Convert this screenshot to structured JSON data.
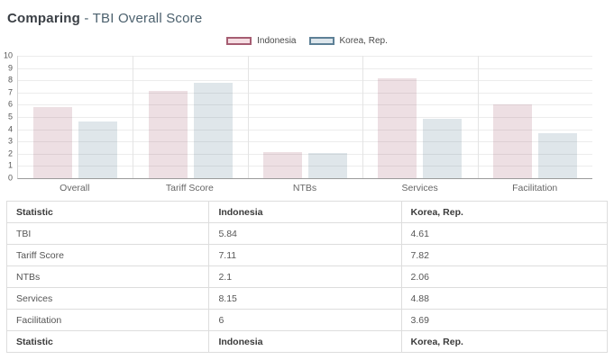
{
  "title": {
    "prefix": "Comparing",
    "suffix": "- TBI Overall Score"
  },
  "legend": [
    {
      "label": "Indonesia",
      "fill": "#f5dee3",
      "border": "#a65d72"
    },
    {
      "label": "Korea, Rep.",
      "fill": "#dde6ec",
      "border": "#5d8096"
    }
  ],
  "colors": {
    "indonesia_bar": "rgba(166,93,114,0.20)",
    "korea_bar": "rgba(93,128,150,0.20)",
    "axis_line": "#9a9a9a",
    "gridline": "#ececec"
  },
  "chart_data": {
    "type": "bar",
    "title": "Comparing - TBI Overall Score",
    "categories": [
      "Overall",
      "Tariff Score",
      "NTBs",
      "Services",
      "Facilitation"
    ],
    "series": [
      {
        "name": "Indonesia",
        "values": [
          5.84,
          7.11,
          2.1,
          8.15,
          6
        ],
        "color": "rgba(166,93,114,0.20)"
      },
      {
        "name": "Korea, Rep.",
        "values": [
          4.61,
          7.82,
          2.06,
          4.88,
          3.69
        ],
        "color": "rgba(93,128,150,0.20)"
      }
    ],
    "xlabel": "",
    "ylabel": "",
    "ylim": [
      0,
      10
    ],
    "y_ticks": [
      0,
      1,
      2,
      3,
      4,
      5,
      6,
      7,
      8,
      9,
      10
    ],
    "grid": true,
    "legend_position": "top-center"
  },
  "table": {
    "headers": [
      "Statistic",
      "Indonesia",
      "Korea, Rep."
    ],
    "rows": [
      [
        "TBI",
        "5.84",
        "4.61"
      ],
      [
        "Tariff Score",
        "7.11",
        "7.82"
      ],
      [
        "NTBs",
        "2.1",
        "2.06"
      ],
      [
        "Services",
        "8.15",
        "4.88"
      ],
      [
        "Facilitation",
        "6",
        "3.69"
      ]
    ],
    "footer": [
      "Statistic",
      "Indonesia",
      "Korea, Rep."
    ]
  }
}
